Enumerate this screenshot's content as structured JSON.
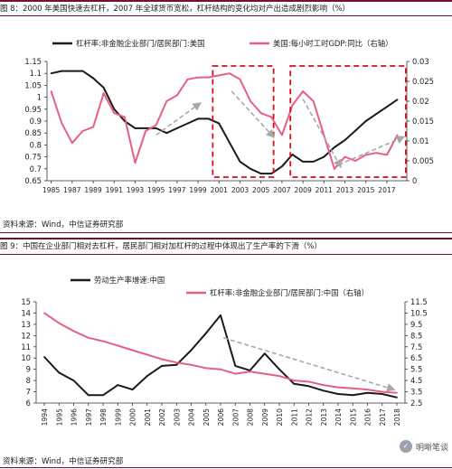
{
  "page": {
    "fig8_title": "图 8：2000 年美国快速去杠杆，2007 年全球货币宽松，杠杆结构的变化均对产出造成剧烈影响（%）",
    "fig8_source": "资料来源：Wind，中信证券研究部",
    "fig9_title": "图 9：中国在企业部门相对去杠杆，居民部门相对加杠杆的过程中体现出了生产率的下滑（%）",
    "fig9_source": "资料来源：Wind，中信证券研究部",
    "watermark": "明晰笔谈",
    "watermark_icon": "wechat-logo-icon"
  },
  "chart_data": [
    {
      "type": "line",
      "title": "图 8：2000 年美国快速去杠杆，2007 年全球货币宽松，杠杆结构的变化均对产出造成剧烈影响（%）",
      "x": [
        1985,
        1986,
        1987,
        1988,
        1989,
        1990,
        1991,
        1992,
        1993,
        1994,
        1995,
        1996,
        1997,
        1998,
        1999,
        2000,
        2001,
        2002,
        2003,
        2004,
        2005,
        2006,
        2007,
        2008,
        2009,
        2010,
        2011,
        2012,
        2013,
        2014,
        2015,
        2016,
        2017,
        2018
      ],
      "x_ticks": [
        "1985",
        "1987",
        "1989",
        "1991",
        "1993",
        "1995",
        "1997",
        "1999",
        "2001",
        "2003",
        "2005",
        "2007",
        "2009",
        "2011",
        "2013",
        "2015",
        "2017"
      ],
      "y_left": {
        "range": [
          0.65,
          1.15
        ],
        "ticks": [
          "0.65",
          "0.7",
          "0.75",
          "0.8",
          "0.85",
          "0.9",
          "0.95",
          "1",
          "1.05",
          "1.1",
          "1.15"
        ]
      },
      "y_right": {
        "range": [
          0,
          0.03
        ],
        "ticks": [
          "0",
          "0.005",
          "0.01",
          "0.015",
          "0.02",
          "0.025",
          "0.03"
        ]
      },
      "series": [
        {
          "name": "杠杆率:非金融企业部门/居民部门:美国",
          "axis": "left",
          "color": "#1a1a1a",
          "values": [
            1.1,
            1.11,
            1.11,
            1.11,
            1.08,
            1.04,
            0.95,
            0.9,
            0.87,
            0.87,
            0.87,
            0.85,
            0.87,
            0.89,
            0.91,
            0.91,
            0.89,
            0.81,
            0.73,
            0.7,
            0.68,
            0.68,
            0.71,
            0.76,
            0.73,
            0.73,
            0.75,
            0.79,
            0.82,
            0.86,
            0.9,
            0.93,
            0.96,
            0.99
          ]
        },
        {
          "name": "美国:每小时工时GDP:同比（右轴）",
          "axis": "right",
          "color": "#e8607f",
          "values": [
            0.0225,
            0.0145,
            0.0095,
            0.0125,
            0.0135,
            0.022,
            0.017,
            0.016,
            0.0045,
            0.0125,
            0.014,
            0.02,
            0.0215,
            0.0255,
            0.026,
            0.026,
            0.0265,
            0.027,
            0.0255,
            0.02,
            0.017,
            0.016,
            0.0115,
            0.019,
            0.0225,
            0.02,
            0.0115,
            0.003,
            0.006,
            0.005,
            0.0065,
            0.007,
            0.0065,
            0.0115
          ]
        }
      ],
      "legend": "top",
      "annotations": {
        "dashed_boxes_x": [
          [
            2000.4,
            2006.2
          ],
          [
            2007.8,
            2018.8
          ]
        ]
      }
    },
    {
      "type": "line",
      "title": "图 9：中国在企业部门相对去杠杆，居民部门相对加杠杆的过程中体现出了生产率的下滑（%）",
      "x": [
        "1994",
        "1995",
        "1996",
        "1997",
        "1998",
        "1999",
        "2000",
        "2001",
        "2002",
        "2003",
        "2004",
        "2005",
        "2006",
        "2007",
        "2008",
        "2009",
        "2010",
        "2011",
        "2012",
        "2013",
        "2014",
        "2015",
        "2016",
        "2017",
        "2018"
      ],
      "y_left": {
        "range": [
          6,
          15
        ],
        "ticks": [
          "6",
          "7",
          "8",
          "9",
          "10",
          "11",
          "12",
          "13",
          "14",
          "15"
        ]
      },
      "y_right": {
        "range": [
          2.5,
          11.5
        ],
        "ticks": [
          "2.5",
          "3.5",
          "4.5",
          "5.5",
          "6.5",
          "7.5",
          "8.5",
          "9.5",
          "10.5",
          "11.5"
        ]
      },
      "series": [
        {
          "name": "劳动生产率增速:中国",
          "axis": "left",
          "color": "#1a1a1a",
          "values": [
            10.1,
            8.7,
            8.0,
            6.7,
            6.7,
            7.6,
            7.2,
            8.4,
            9.3,
            9.4,
            10.7,
            12.2,
            13.8,
            9.3,
            8.9,
            10.4,
            9.0,
            7.7,
            7.5,
            7.1,
            6.8,
            6.7,
            6.9,
            6.8,
            6.5
          ]
        },
        {
          "name": "杠杆率:非金融企业部门/居民部门:中国（右轴）",
          "axis": "right",
          "color": "#e8607f",
          "values": [
            10.5,
            9.6,
            8.9,
            8.3,
            8.0,
            7.6,
            7.2,
            6.8,
            6.4,
            6.1,
            5.9,
            5.6,
            5.5,
            5.1,
            5.3,
            5.1,
            4.9,
            4.5,
            4.4,
            4.1,
            3.9,
            3.8,
            3.7,
            3.5,
            3.4
          ]
        }
      ],
      "legend": "top"
    }
  ]
}
